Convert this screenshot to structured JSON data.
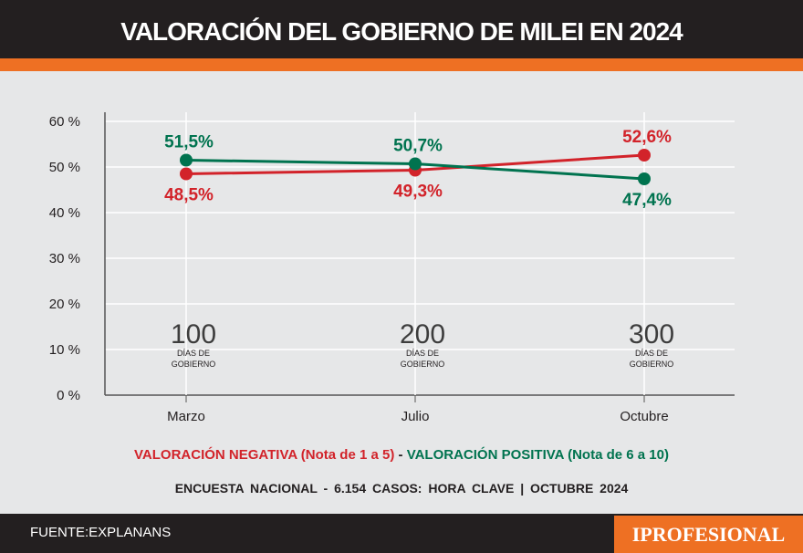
{
  "header": {
    "title": "VALORACIÓN DEL GOBIERNO DE MILEI EN 2024"
  },
  "chart_data": {
    "type": "line",
    "categories": [
      "Marzo",
      "Julio",
      "Octubre"
    ],
    "ylim": [
      0,
      60
    ],
    "yticks": [
      "0 %",
      "10 %",
      "20 %",
      "30 %",
      "40 %",
      "50 %",
      "60 %"
    ],
    "grid": true,
    "series": [
      {
        "name": "VALORACIÓN NEGATIVA",
        "color": "#d2232a",
        "values": [
          48.5,
          49.3,
          52.6
        ],
        "labels": [
          "48,5%",
          "49,3%",
          "52,6%"
        ]
      },
      {
        "name": "VALORACIÓN POSITIVA",
        "color": "#00734f",
        "values": [
          51.5,
          50.7,
          47.4
        ],
        "labels": [
          "51,5%",
          "50,7%",
          "47,4%"
        ]
      }
    ],
    "annotations": [
      {
        "number": "100",
        "line1": "DÍAS DE",
        "line2": "GOBIERNO"
      },
      {
        "number": "200",
        "line1": "DÍAS DE",
        "line2": "GOBIERNO"
      },
      {
        "number": "300",
        "line1": "DÍAS DE",
        "line2": "GOBIERNO"
      }
    ]
  },
  "legend": {
    "negative": "VALORACIÓN NEGATIVA (Nota de 1 a 5)",
    "sep": " - ",
    "positive": "VALORACIÓN POSITIVA (Nota de 6 a 10)"
  },
  "survey": "ENCUESTA NACIONAL - 6.154 CASOS: HORA CLAVE | OCTUBRE 2024",
  "footer": {
    "source": "FUENTE:EXPLANANS",
    "brand": "IPROFESIONAL"
  }
}
